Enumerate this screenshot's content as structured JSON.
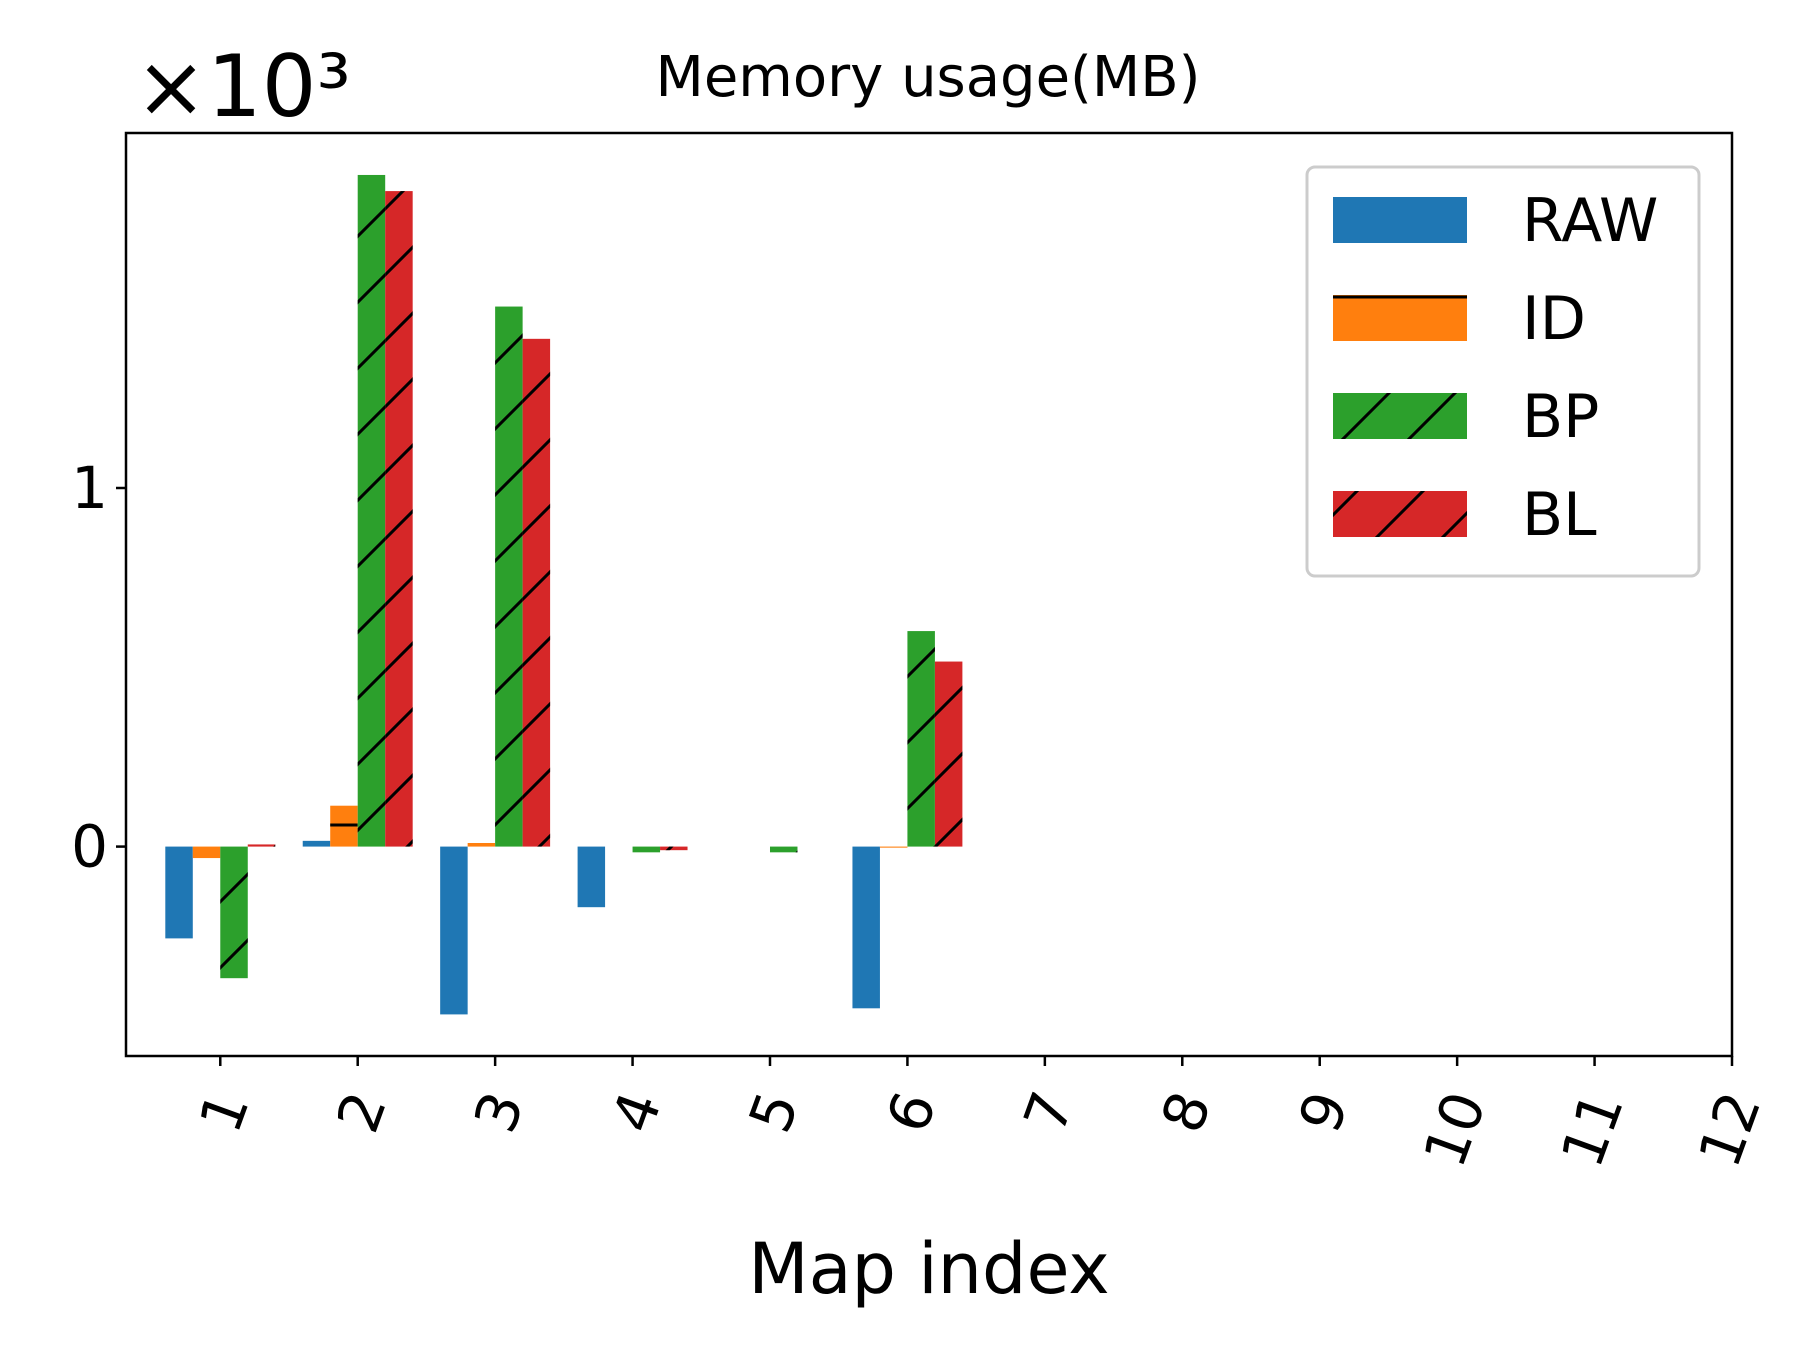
{
  "chart_data": {
    "type": "bar",
    "title": "Memory usage(MB)",
    "x_label": "Map index",
    "y_offset_label": "×10³",
    "x": [
      1,
      2,
      3,
      4,
      5,
      6
    ],
    "series": [
      {
        "name": "RAW",
        "color": "#1f77b4",
        "hatch": "none",
        "values": [
          -0.256,
          0.016,
          -0.468,
          -0.169,
          0,
          -0.451
        ]
      },
      {
        "name": "ID",
        "color": "#ff7f0e",
        "hatch": "-",
        "values": [
          -0.032,
          0.114,
          0.01,
          0,
          0,
          -0.003
        ]
      },
      {
        "name": "BP",
        "color": "#2ca02c",
        "hatch": "/",
        "values": [
          -0.367,
          1.873,
          1.506,
          -0.016,
          -0.016,
          0.601
        ]
      },
      {
        "name": "BL",
        "color": "#d62728",
        "hatch": "/",
        "values": [
          0.006,
          1.828,
          1.416,
          -0.01,
          0,
          0.516
        ]
      }
    ],
    "bar_width": 0.2,
    "xlim": [
      0.314,
      12
    ],
    "xticks": [
      1,
      2,
      3,
      4,
      5,
      6,
      7,
      8,
      9,
      10,
      11,
      12
    ],
    "ylim": [
      -0.584,
      1.99
    ],
    "yticks": [
      0,
      1
    ],
    "grid": false,
    "legend": "upper right"
  }
}
